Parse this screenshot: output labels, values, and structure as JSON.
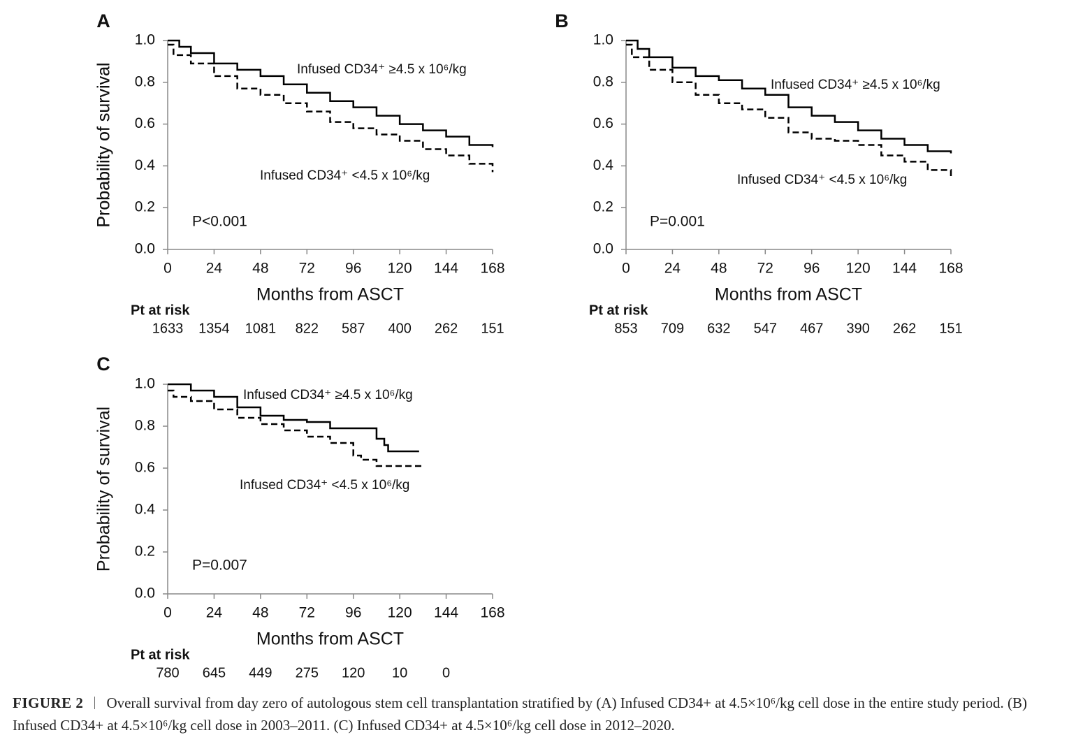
{
  "chart_data": [
    {
      "type": "line",
      "panel": "A",
      "ylabel": "Probability of survival",
      "xlabel": "Months from ASCT",
      "xlim": [
        0,
        168
      ],
      "xticks": [
        0,
        24,
        48,
        72,
        96,
        120,
        144,
        168
      ],
      "ylim": [
        0,
        1
      ],
      "yticks": [
        {
          "value": 0,
          "label": "0.0"
        },
        {
          "value": 0.2,
          "label": "0.2"
        },
        {
          "value": 0.4,
          "label": "0.4"
        },
        {
          "value": 0.6,
          "label": "0.6"
        },
        {
          "value": 0.8,
          "label": "0.8"
        },
        {
          "value": 1,
          "label": "1.0"
        }
      ],
      "annotation": "P<0.001",
      "risk_label": "Pt at risk",
      "at_risk": [
        1633,
        1354,
        1081,
        822,
        587,
        400,
        262,
        151
      ],
      "series": [
        {
          "name": "Infused CD34⁺ ≥4.5 x 10⁶/kg",
          "color": "#000000",
          "line_style": "solid",
          "x": [
            0,
            6,
            12,
            24,
            36,
            48,
            60,
            72,
            84,
            96,
            108,
            120,
            132,
            144,
            156,
            168
          ],
          "values": [
            1.0,
            0.97,
            0.94,
            0.89,
            0.86,
            0.83,
            0.79,
            0.75,
            0.71,
            0.68,
            0.64,
            0.6,
            0.57,
            0.54,
            0.5,
            0.49
          ]
        },
        {
          "name": "Infused CD34⁺ <4.5 x 10⁶/kg",
          "color": "#000000",
          "line_style": "dashed",
          "x": [
            0,
            3,
            12,
            24,
            36,
            48,
            60,
            72,
            84,
            96,
            108,
            120,
            132,
            144,
            156,
            168
          ],
          "values": [
            0.98,
            0.93,
            0.89,
            0.83,
            0.77,
            0.74,
            0.7,
            0.66,
            0.61,
            0.58,
            0.55,
            0.52,
            0.48,
            0.45,
            0.41,
            0.37
          ]
        }
      ]
    },
    {
      "type": "line",
      "panel": "B",
      "ylabel": "Probability of survival",
      "xlabel": "Months from ASCT",
      "xlim": [
        0,
        168
      ],
      "xticks": [
        0,
        24,
        48,
        72,
        96,
        120,
        144,
        168
      ],
      "ylim": [
        0,
        1
      ],
      "yticks": [
        {
          "value": 0,
          "label": "0.0"
        },
        {
          "value": 0.2,
          "label": "0.2"
        },
        {
          "value": 0.4,
          "label": "0.4"
        },
        {
          "value": 0.6,
          "label": "0.6"
        },
        {
          "value": 0.8,
          "label": "0.8"
        },
        {
          "value": 1,
          "label": "1.0"
        }
      ],
      "annotation": "P=0.001",
      "risk_label": "Pt at risk",
      "at_risk": [
        853,
        709,
        632,
        547,
        467,
        390,
        262,
        151
      ],
      "series": [
        {
          "name": "Infused CD34⁺ ≥4.5 x 10⁶/kg",
          "color": "#000000",
          "line_style": "solid",
          "x": [
            0,
            6,
            12,
            24,
            36,
            48,
            60,
            72,
            84,
            96,
            108,
            120,
            132,
            144,
            156,
            168
          ],
          "values": [
            1.0,
            0.96,
            0.92,
            0.87,
            0.83,
            0.81,
            0.77,
            0.74,
            0.68,
            0.64,
            0.61,
            0.57,
            0.53,
            0.5,
            0.47,
            0.46
          ]
        },
        {
          "name": "Infused CD34⁺ <4.5 x 10⁶/kg",
          "color": "#000000",
          "line_style": "dashed",
          "x": [
            0,
            3,
            12,
            24,
            36,
            48,
            60,
            72,
            84,
            96,
            108,
            120,
            132,
            144,
            156,
            168
          ],
          "values": [
            0.98,
            0.92,
            0.86,
            0.8,
            0.74,
            0.7,
            0.67,
            0.63,
            0.56,
            0.53,
            0.52,
            0.5,
            0.45,
            0.42,
            0.38,
            0.35
          ]
        }
      ]
    },
    {
      "type": "line",
      "panel": "C",
      "ylabel": "Probability of survival",
      "xlabel": "Months from ASCT",
      "xlim": [
        0,
        168
      ],
      "xticks": [
        0,
        24,
        48,
        72,
        96,
        120,
        144,
        168
      ],
      "ylim": [
        0,
        1
      ],
      "yticks": [
        {
          "value": 0,
          "label": "0.0"
        },
        {
          "value": 0.2,
          "label": "0.2"
        },
        {
          "value": 0.4,
          "label": "0.4"
        },
        {
          "value": 0.6,
          "label": "0.6"
        },
        {
          "value": 0.8,
          "label": "0.8"
        },
        {
          "value": 1,
          "label": "1.0"
        }
      ],
      "annotation": "P=0.007",
      "risk_label": "Pt at risk",
      "at_risk": [
        780,
        645,
        449,
        275,
        120,
        10,
        0
      ],
      "series": [
        {
          "name": "Infused CD34⁺ ≥4.5 x 10⁶/kg",
          "color": "#000000",
          "line_style": "solid",
          "x": [
            0,
            12,
            24,
            36,
            48,
            60,
            72,
            84,
            96,
            102,
            108,
            112,
            114,
            130
          ],
          "values": [
            1.0,
            0.97,
            0.94,
            0.89,
            0.85,
            0.83,
            0.82,
            0.79,
            0.79,
            0.79,
            0.74,
            0.71,
            0.68,
            0.68
          ]
        },
        {
          "name": "Infused CD34⁺ <4.5 x 10⁶/kg",
          "color": "#000000",
          "line_style": "dashed",
          "x": [
            0,
            3,
            12,
            24,
            36,
            48,
            60,
            72,
            84,
            96,
            100,
            108,
            132
          ],
          "values": [
            0.97,
            0.94,
            0.92,
            0.88,
            0.84,
            0.81,
            0.78,
            0.75,
            0.72,
            0.66,
            0.64,
            0.61,
            0.61
          ]
        }
      ]
    }
  ],
  "caption": {
    "label": "FIGURE 2",
    "text": "Overall survival from day zero of autologous stem cell transplantation stratified by (A) Infused CD34+ at 4.5×10⁶/kg cell dose in the entire study period. (B) Infused CD34+ at 4.5×10⁶/kg cell dose in 2003–2011. (C) Infused CD34+ at 4.5×10⁶/kg cell dose in 2012–2020."
  }
}
